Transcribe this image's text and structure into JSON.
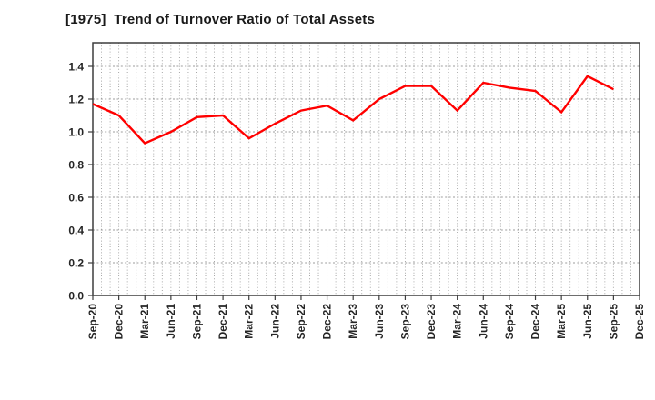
{
  "header": {
    "title": "[1975]  Trend of Turnover Ratio of Total Assets"
  },
  "chart_data": {
    "type": "line",
    "title": "[1975]  Trend of Turnover Ratio of Total Assets",
    "categories": [
      "Sep-20",
      "Dec-20",
      "Mar-21",
      "Jun-21",
      "Sep-21",
      "Dec-21",
      "Mar-22",
      "Jun-22",
      "Sep-22",
      "Dec-22",
      "Mar-23",
      "Jun-23",
      "Sep-23",
      "Dec-23",
      "Mar-24",
      "Jun-24",
      "Sep-24",
      "Dec-24",
      "Mar-25",
      "Jun-25",
      "Sep-25",
      "Dec-25"
    ],
    "series": [
      {
        "name": "Turnover Ratio of Total Assets",
        "color": "#ff0000",
        "values": [
          1.17,
          1.1,
          0.93,
          1.0,
          1.09,
          1.1,
          0.96,
          1.05,
          1.13,
          1.16,
          1.07,
          1.2,
          1.28,
          1.28,
          1.13,
          1.3,
          1.27,
          1.25,
          1.12,
          1.34,
          1.26,
          null
        ]
      }
    ],
    "xlabel": "",
    "ylabel": "",
    "ylim": [
      0.0,
      1.4
    ],
    "ytick_labels": [
      "0.0",
      "0.2",
      "0.4",
      "0.6",
      "0.8",
      "1.0",
      "1.2",
      "1.4"
    ],
    "ytick_step": 0.2,
    "grid": "dotted",
    "minor_x_divisions_per_quarter": 3,
    "legend_position": "none"
  },
  "style": {
    "line_color": "#ff0000",
    "grid_color": "#9e9e9e",
    "axis_color": "#3d3d3d",
    "tick_label_color": "#262626",
    "title_color": "#1a1a1a",
    "background_color": "#ffffff"
  }
}
